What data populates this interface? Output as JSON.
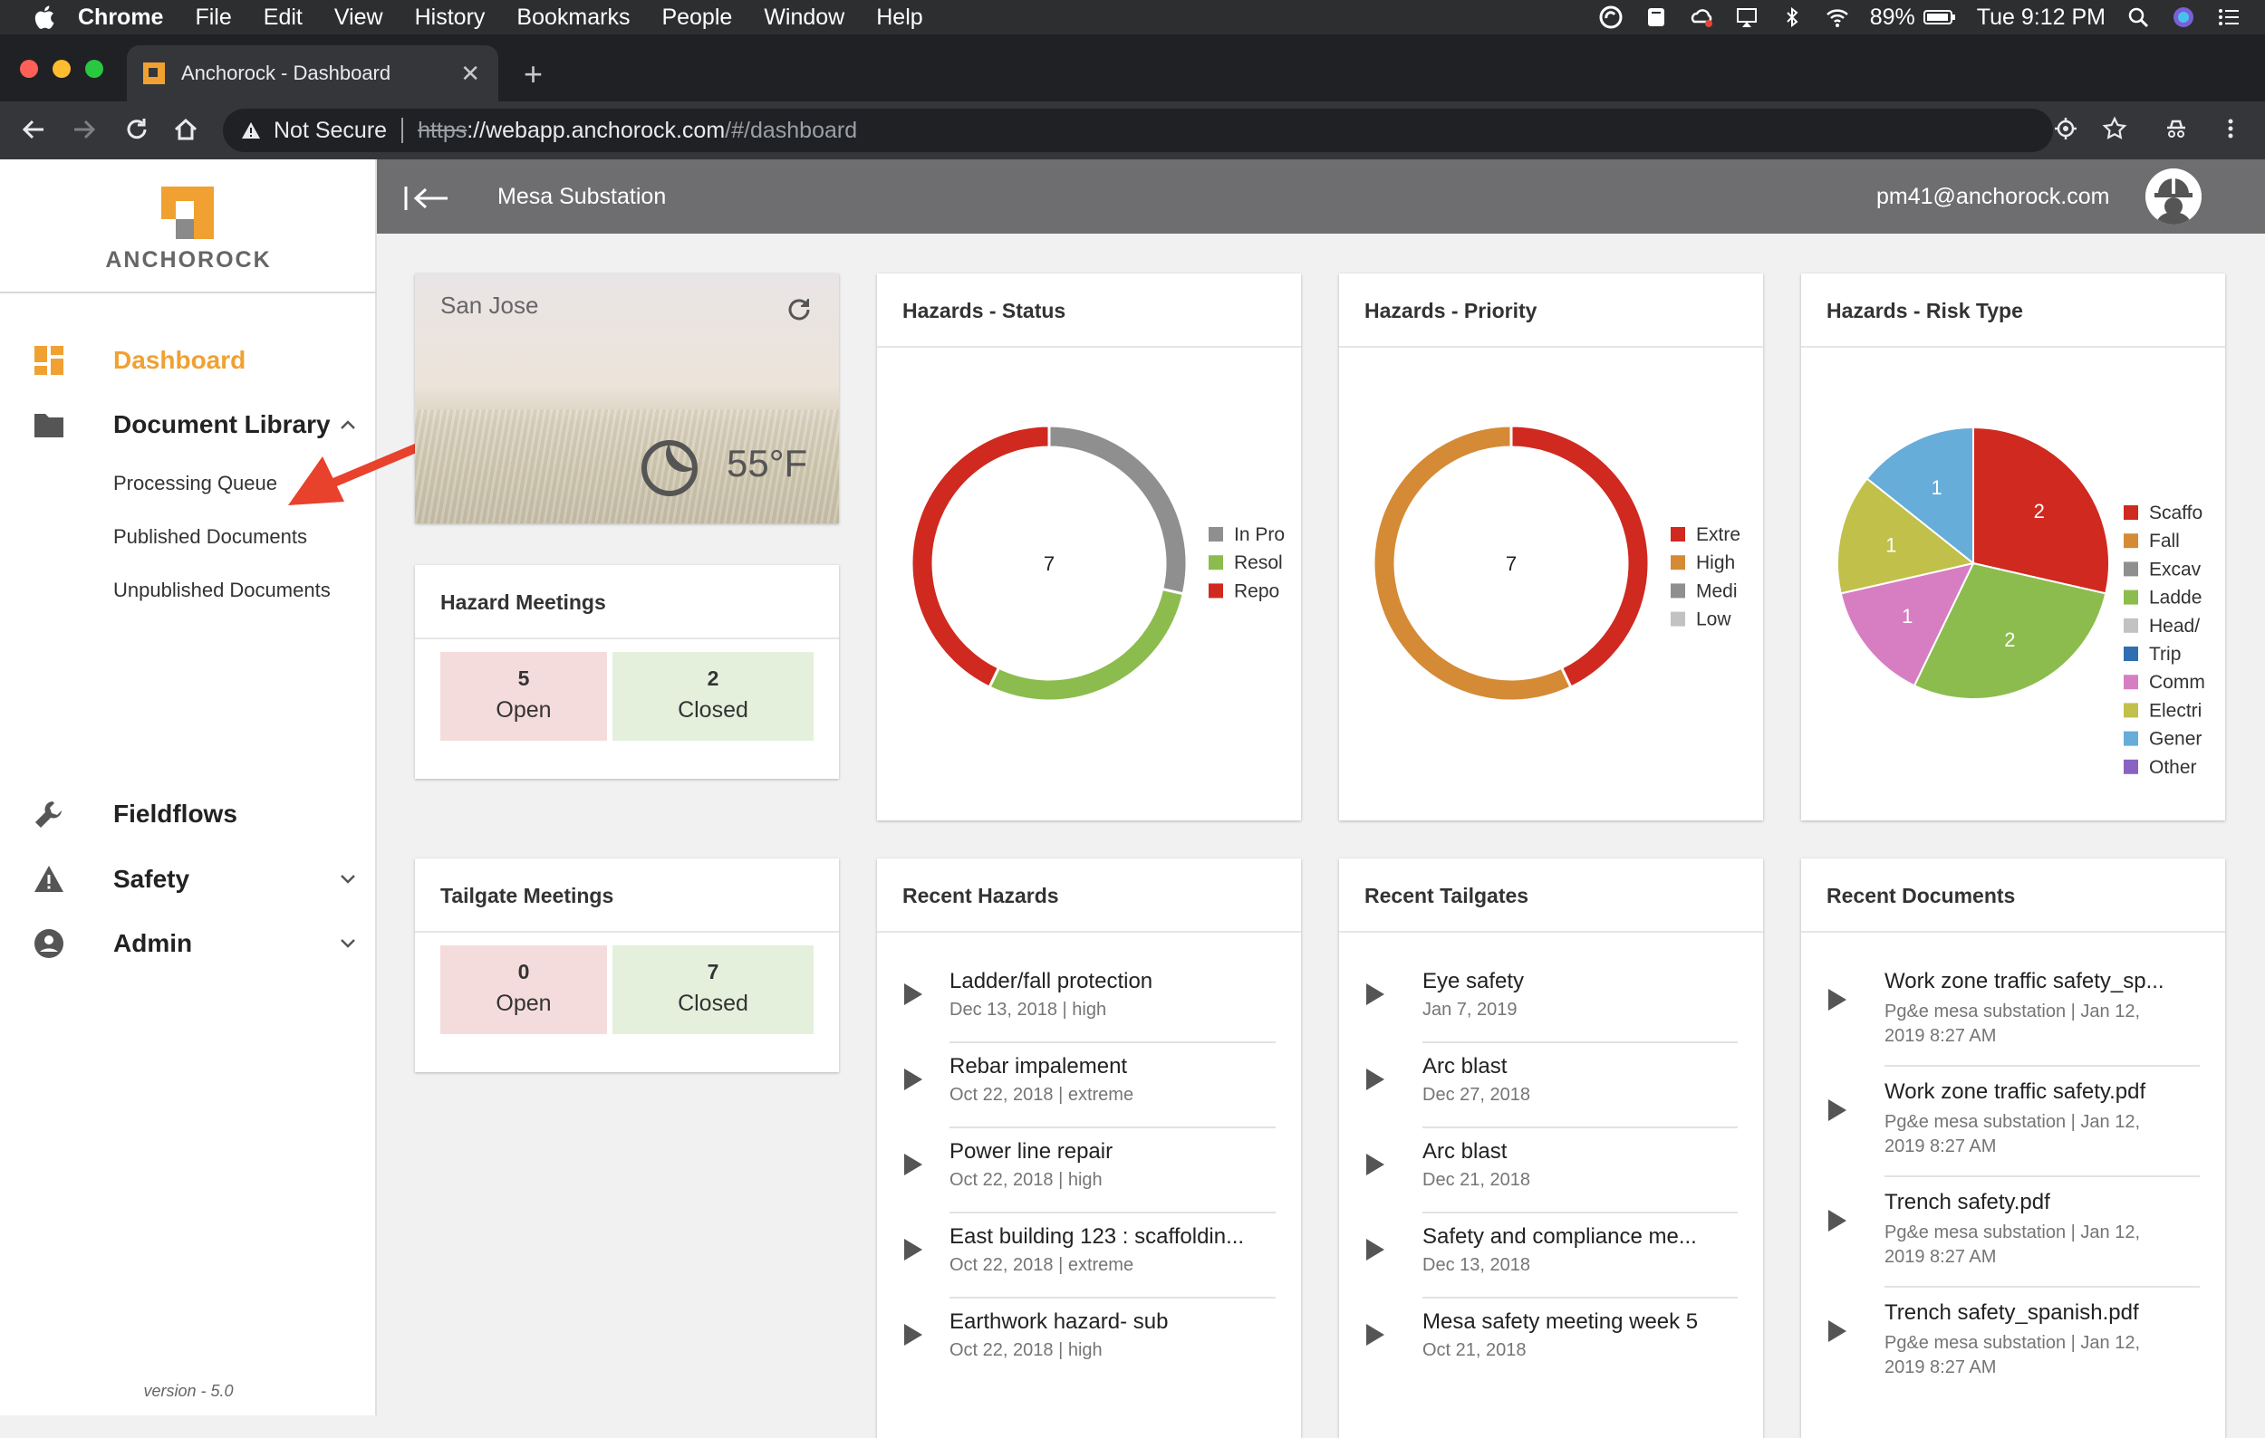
{
  "menubar": {
    "app": "Chrome",
    "items": [
      "File",
      "Edit",
      "View",
      "History",
      "Bookmarks",
      "People",
      "Window",
      "Help"
    ],
    "battery": "89%",
    "clock": "Tue 9:12 PM"
  },
  "browser": {
    "tab_title": "Anchorock - Dashboard",
    "security": "Not Secure",
    "url_protocol": "https",
    "url_host": "://webapp.anchorock.com",
    "url_path": "/#/dashboard"
  },
  "sidebar": {
    "brand": "ANCHOROCK",
    "nav": {
      "dashboard": "Dashboard",
      "document_library": "Document Library",
      "fieldflows": "Fieldflows",
      "safety": "Safety",
      "admin": "Admin"
    },
    "sub": {
      "processing_queue": "Processing Queue",
      "published": "Published Documents",
      "unpublished": "Unpublished Documents"
    },
    "version": "version - 5.0"
  },
  "header": {
    "title": "Mesa Substation",
    "email": "pm41@anchorock.com"
  },
  "weather": {
    "city": "San Jose",
    "temp": "55°F"
  },
  "hazard_meetings": {
    "title": "Hazard Meetings",
    "open_count": "5",
    "open_label": "Open",
    "closed_count": "2",
    "closed_label": "Closed"
  },
  "tailgate_meetings": {
    "title": "Tailgate Meetings",
    "open_count": "0",
    "open_label": "Open",
    "closed_count": "7",
    "closed_label": "Closed"
  },
  "colors": {
    "accent": "#f0a131",
    "red": "#d0291f",
    "orange": "#d58a36",
    "green": "#8cbc4e",
    "gray": "#8f8f8f",
    "lightgray": "#c2c2c2",
    "blue": "#2f6fb1",
    "pink": "#d77ec3",
    "olive": "#c1c04a",
    "skyblue": "#66add9",
    "purple": "#8a63c2"
  },
  "chart_data": [
    {
      "type": "pie",
      "donut": true,
      "title": "Hazards - Status",
      "center_label": "7",
      "series": [
        {
          "name": "In Pro",
          "value": 2,
          "color": "#8f8f8f"
        },
        {
          "name": "Resol",
          "value": 2,
          "color": "#8cbc4e"
        },
        {
          "name": "Repo",
          "value": 3,
          "color": "#d0291f"
        }
      ],
      "legend": "right"
    },
    {
      "type": "pie",
      "donut": true,
      "title": "Hazards - Priority",
      "center_label": "7",
      "series": [
        {
          "name": "Extre",
          "value": 3,
          "color": "#d0291f"
        },
        {
          "name": "High",
          "value": 4,
          "color": "#d58a36"
        },
        {
          "name": "Medi",
          "value": 0,
          "color": "#8f8f8f"
        },
        {
          "name": "Low",
          "value": 0,
          "color": "#c2c2c2"
        }
      ],
      "legend": "right"
    },
    {
      "type": "pie",
      "donut": false,
      "title": "Hazards - Risk Type",
      "series": [
        {
          "name": "Scaffo",
          "value": 2,
          "color": "#d0291f"
        },
        {
          "name": "Fall",
          "value": 0,
          "color": "#d58a36"
        },
        {
          "name": "Excav",
          "value": 0,
          "color": "#8f8f8f"
        },
        {
          "name": "Ladde",
          "value": 2,
          "color": "#8cbc4e"
        },
        {
          "name": "Head/",
          "value": 0,
          "color": "#c2c2c2"
        },
        {
          "name": "Trip",
          "value": 0,
          "color": "#2f6fb1"
        },
        {
          "name": "Comm",
          "value": 1,
          "color": "#d77ec3"
        },
        {
          "name": "Electri",
          "value": 1,
          "color": "#c1c04a"
        },
        {
          "name": "Gener",
          "value": 1,
          "color": "#66add9"
        },
        {
          "name": "Other",
          "value": 0,
          "color": "#8a63c2"
        }
      ],
      "legend": "right"
    }
  ],
  "recent_hazards": {
    "title": "Recent Hazards",
    "items": [
      {
        "title": "Ladder/fall protection",
        "sub": "Dec 13, 2018 | high"
      },
      {
        "title": "Rebar impalement",
        "sub": "Oct 22, 2018 | extreme"
      },
      {
        "title": "Power line repair",
        "sub": "Oct 22, 2018 | high"
      },
      {
        "title": "East building 123 : scaffoldin...",
        "sub": "Oct 22, 2018 | extreme"
      },
      {
        "title": "Earthwork hazard- sub",
        "sub": "Oct 22, 2018 | high"
      }
    ]
  },
  "recent_tailgates": {
    "title": "Recent Tailgates",
    "items": [
      {
        "title": "Eye safety",
        "sub": "Jan 7, 2019"
      },
      {
        "title": "Arc blast",
        "sub": "Dec 27, 2018"
      },
      {
        "title": "Arc blast",
        "sub": "Dec 21, 2018"
      },
      {
        "title": "Safety and compliance me...",
        "sub": "Dec 13, 2018"
      },
      {
        "title": "Mesa safety meeting week 5",
        "sub": "Oct 21, 2018"
      }
    ]
  },
  "recent_documents": {
    "title": "Recent Documents",
    "items": [
      {
        "title": "Work zone traffic safety_sp...",
        "sub": "Pg&e mesa substation | Jan 12, 2019 8:27 AM"
      },
      {
        "title": "Work zone traffic safety.pdf",
        "sub": "Pg&e mesa substation | Jan 12, 2019 8:27 AM"
      },
      {
        "title": "Trench safety.pdf",
        "sub": "Pg&e mesa substation | Jan 12, 2019 8:27 AM"
      },
      {
        "title": "Trench safety_spanish.pdf",
        "sub": "Pg&e mesa substation | Jan 12, 2019 8:27 AM"
      }
    ]
  }
}
